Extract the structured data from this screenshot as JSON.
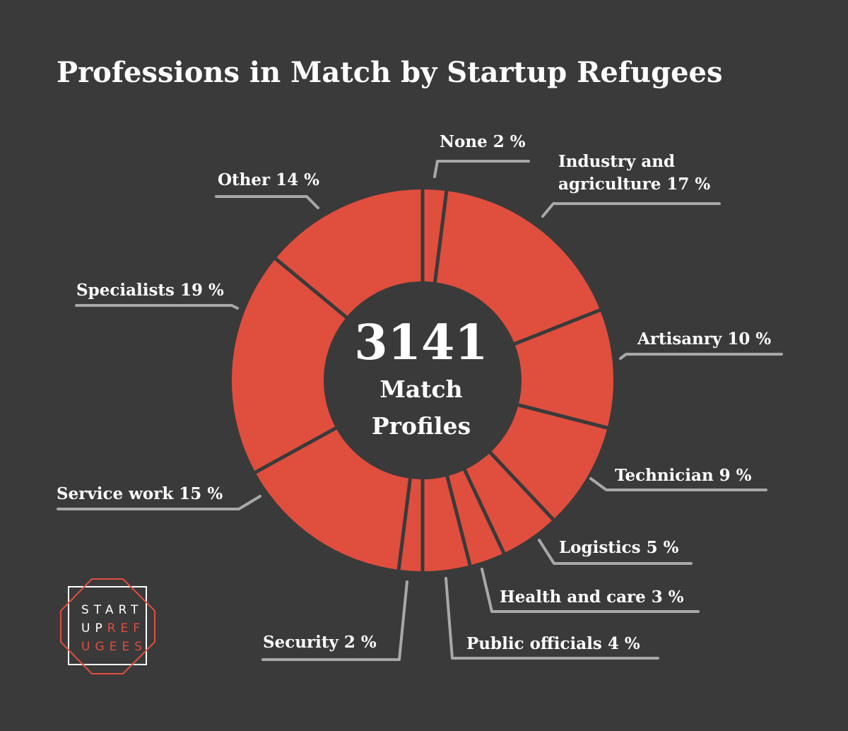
{
  "colors": {
    "background": "#3a3a3a",
    "slice": "#e04e3e",
    "text": "#ffffff",
    "leader": "#a8a8a8",
    "logo_white": "#ffffff",
    "logo_accent": "#e04e3e"
  },
  "logo": {
    "lines": [
      [
        {
          "t": "START",
          "accent": false
        }
      ],
      [
        {
          "t": "UP",
          "accent": false
        },
        {
          "t": "REF",
          "accent": true
        }
      ],
      [
        {
          "t": "UGEES",
          "accent": true
        }
      ]
    ]
  },
  "chart_data": {
    "type": "pie",
    "donut": true,
    "title": "Professions in Match by Startup Refugees",
    "center": {
      "value": "3141",
      "line1": "Match",
      "line2": "Profiles"
    },
    "unit": "%",
    "slices": [
      {
        "label": "None 2 %",
        "value": 2
      },
      {
        "label": "Industry and agriculture 17 %",
        "value": 17
      },
      {
        "label": "Artisanry 10 %",
        "value": 10
      },
      {
        "label": "Technician 9 %",
        "value": 9
      },
      {
        "label": "Logistics 5 %",
        "value": 5
      },
      {
        "label": "Health and care 3 %",
        "value": 3
      },
      {
        "label": "Public officials 4 %",
        "value": 4
      },
      {
        "label": "Security 2 %",
        "value": 2
      },
      {
        "label": "Service work 15 %",
        "value": 15
      },
      {
        "label": "Specialists 19 %",
        "value": 19
      },
      {
        "label": "Other 14 %",
        "value": 14
      }
    ]
  }
}
